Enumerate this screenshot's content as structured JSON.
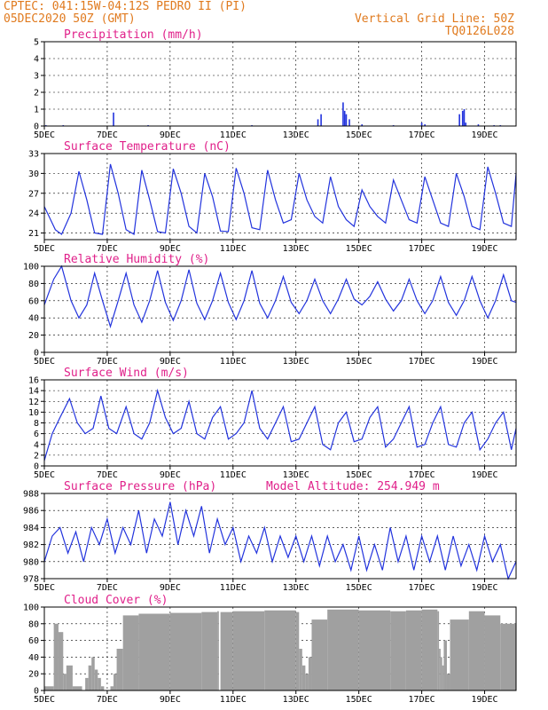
{
  "header": {
    "line1_left": "CPTEC:   041:15W-04:12S   PEDRO II (PI)",
    "line2_left": "05DEC2020 50Z (GMT)",
    "line2_right": "Vertical Grid Line: 50Z",
    "line3_right": "TQ0126L028"
  },
  "colors": {
    "line": "#2233dd",
    "bar": "#2233dd",
    "cloud": "#a0a0a0",
    "title": "#e0208a",
    "header": "#e07a1e"
  },
  "x_axis": {
    "tick_labels": [
      "5DEC",
      "7DEC",
      "9DEC",
      "11DEC",
      "13DEC",
      "15DEC",
      "17DEC",
      "19DEC"
    ],
    "tick_days": [
      0,
      2,
      4,
      6,
      8,
      10,
      12,
      14
    ],
    "day_range": [
      0,
      15
    ]
  },
  "chart_data": [
    {
      "type": "bar",
      "title": "Precipitation (mm/h)",
      "ylim": [
        0,
        5
      ],
      "yticks": [
        0,
        1,
        2,
        3,
        4,
        5
      ],
      "x": [
        0.05,
        0.6,
        2.2,
        3.3,
        6.6,
        8.7,
        8.8,
        9.5,
        9.55,
        9.6,
        9.7,
        10.1,
        11.1,
        12.0,
        12.1,
        13.2,
        13.3,
        13.35,
        13.4,
        13.8,
        14.3,
        14.5
      ],
      "values": [
        0.05,
        0.05,
        0.8,
        0.05,
        0.05,
        0.4,
        0.7,
        1.4,
        0.9,
        0.7,
        0.4,
        0.1,
        0.05,
        0.2,
        0.1,
        0.7,
        0.9,
        1.0,
        0.2,
        0.1,
        0.05,
        0.05
      ]
    },
    {
      "type": "line",
      "title": "Surface Temperature (nC)",
      "ylim": [
        20,
        33
      ],
      "yticks": [
        21,
        24,
        27,
        30,
        33
      ],
      "x": [
        0,
        0.35,
        0.55,
        0.85,
        1.1,
        1.35,
        1.6,
        1.85,
        2.1,
        2.35,
        2.6,
        2.85,
        3.1,
        3.35,
        3.6,
        3.85,
        4.1,
        4.35,
        4.6,
        4.85,
        5.1,
        5.35,
        5.6,
        5.85,
        6.1,
        6.35,
        6.6,
        6.85,
        7.1,
        7.35,
        7.6,
        7.85,
        8.1,
        8.35,
        8.6,
        8.85,
        9.1,
        9.35,
        9.6,
        9.85,
        10.1,
        10.35,
        10.6,
        10.85,
        11.1,
        11.35,
        11.6,
        11.85,
        12.1,
        12.35,
        12.6,
        12.85,
        13.1,
        13.35,
        13.6,
        13.85,
        14.1,
        14.35,
        14.6,
        14.85,
        15
      ],
      "values": [
        25,
        21.5,
        20.8,
        24,
        30.3,
        26,
        21,
        20.8,
        31.4,
        27,
        21.5,
        20.8,
        30.5,
        26,
        21.2,
        21,
        30.7,
        27,
        22,
        21,
        30,
        26.5,
        21.3,
        21.2,
        30.8,
        27,
        21.8,
        21.5,
        30.5,
        26,
        22.5,
        23,
        30,
        26,
        23.5,
        22.5,
        29.5,
        25,
        23,
        22,
        27.5,
        25,
        23.5,
        22.5,
        29,
        26,
        23,
        22.5,
        29.5,
        26,
        22.5,
        22,
        30,
        26.5,
        22,
        21.5,
        31,
        27,
        22.5,
        22,
        30
      ]
    },
    {
      "type": "line",
      "title": "Relative Humidity (%)",
      "ylim": [
        0,
        100
      ],
      "yticks": [
        0,
        20,
        40,
        60,
        80,
        100
      ],
      "x": [
        0,
        0.3,
        0.55,
        0.85,
        1.1,
        1.35,
        1.6,
        1.85,
        2.1,
        2.35,
        2.6,
        2.85,
        3.1,
        3.35,
        3.6,
        3.85,
        4.1,
        4.35,
        4.6,
        4.85,
        5.1,
        5.35,
        5.6,
        5.85,
        6.1,
        6.35,
        6.6,
        6.85,
        7.1,
        7.35,
        7.6,
        7.85,
        8.1,
        8.35,
        8.6,
        8.85,
        9.1,
        9.35,
        9.6,
        9.85,
        10.1,
        10.35,
        10.6,
        10.85,
        11.1,
        11.35,
        11.6,
        11.85,
        12.1,
        12.35,
        12.6,
        12.85,
        13.1,
        13.35,
        13.6,
        13.85,
        14.1,
        14.35,
        14.6,
        14.85,
        15
      ],
      "values": [
        55,
        85,
        100,
        60,
        40,
        55,
        92,
        60,
        30,
        60,
        92,
        55,
        35,
        60,
        95,
        58,
        37,
        60,
        96,
        57,
        38,
        60,
        92,
        58,
        38,
        60,
        95,
        57,
        40,
        60,
        88,
        58,
        45,
        60,
        85,
        60,
        45,
        62,
        85,
        62,
        55,
        65,
        82,
        62,
        48,
        60,
        85,
        60,
        45,
        60,
        88,
        58,
        43,
        60,
        88,
        60,
        40,
        60,
        90,
        60,
        58
      ]
    },
    {
      "type": "line",
      "title": "Surface Wind (m/s)",
      "ylim": [
        0,
        16
      ],
      "yticks": [
        0,
        2,
        4,
        6,
        8,
        10,
        12,
        14,
        16
      ],
      "x": [
        0,
        0.25,
        0.5,
        0.8,
        1.05,
        1.3,
        1.55,
        1.8,
        2.05,
        2.3,
        2.6,
        2.85,
        3.1,
        3.35,
        3.6,
        3.85,
        4.1,
        4.35,
        4.6,
        4.85,
        5.1,
        5.35,
        5.6,
        5.85,
        6.1,
        6.35,
        6.6,
        6.85,
        7.1,
        7.35,
        7.6,
        7.85,
        8.1,
        8.35,
        8.6,
        8.85,
        9.1,
        9.35,
        9.6,
        9.85,
        10.1,
        10.35,
        10.6,
        10.85,
        11.1,
        11.35,
        11.6,
        11.85,
        12.1,
        12.35,
        12.6,
        12.85,
        13.1,
        13.35,
        13.6,
        13.85,
        14.1,
        14.35,
        14.6,
        14.85,
        15
      ],
      "values": [
        1,
        6,
        9,
        12.5,
        8,
        6,
        7,
        13,
        7,
        6,
        11,
        6,
        5,
        8,
        14,
        9,
        6,
        7,
        12,
        6,
        5,
        9,
        11,
        5,
        6,
        8,
        14,
        7,
        5,
        8,
        11,
        4.5,
        5,
        8,
        11,
        4,
        3,
        8,
        10,
        4.5,
        5,
        9,
        11,
        3.5,
        5,
        8,
        11,
        3.5,
        4,
        8,
        11,
        4,
        3.5,
        8,
        10,
        3,
        5,
        8,
        10,
        3,
        7
      ]
    },
    {
      "type": "line",
      "title": "Surface Pressure (hPa)",
      "subtitle": "Model Altitude: 254.949 m",
      "ylim": [
        978,
        988
      ],
      "yticks": [
        978,
        980,
        982,
        984,
        986,
        988
      ],
      "x": [
        0,
        0.25,
        0.5,
        0.75,
        1.0,
        1.25,
        1.5,
        1.75,
        2.0,
        2.25,
        2.5,
        2.75,
        3.0,
        3.25,
        3.5,
        3.75,
        4.0,
        4.25,
        4.5,
        4.75,
        5.0,
        5.25,
        5.5,
        5.75,
        6.0,
        6.25,
        6.5,
        6.75,
        7.0,
        7.25,
        7.5,
        7.75,
        8.0,
        8.25,
        8.5,
        8.75,
        9.0,
        9.25,
        9.5,
        9.75,
        10.0,
        10.25,
        10.5,
        10.75,
        11.0,
        11.25,
        11.5,
        11.75,
        12.0,
        12.25,
        12.5,
        12.75,
        13.0,
        13.25,
        13.5,
        13.75,
        14.0,
        14.25,
        14.5,
        14.75,
        15
      ],
      "values": [
        980,
        983,
        984,
        981,
        983.5,
        980,
        984,
        982,
        985,
        981,
        984,
        982,
        986,
        981,
        985,
        983,
        987,
        982,
        986,
        983,
        986.5,
        981,
        985,
        982,
        984,
        980,
        983,
        981,
        984,
        980,
        983,
        980.5,
        983,
        980,
        983,
        979.5,
        983,
        980,
        982,
        979,
        983,
        979,
        982,
        979,
        984,
        980,
        983,
        979,
        983,
        980,
        983,
        979,
        983,
        979.5,
        982,
        979,
        983,
        980,
        982,
        978,
        980
      ]
    },
    {
      "type": "area",
      "title": "Cloud Cover (%)",
      "ylim": [
        0,
        100
      ],
      "yticks": [
        0,
        20,
        40,
        60,
        80,
        100
      ],
      "x": [
        0,
        0.3,
        0.45,
        0.6,
        0.7,
        0.9,
        1.2,
        1.3,
        1.4,
        1.5,
        1.6,
        1.7,
        1.8,
        1.9,
        2.0,
        2.1,
        2.2,
        2.3,
        2.5,
        3.0,
        4.0,
        5.0,
        5.5,
        5.55,
        5.6,
        6.0,
        7.0,
        8.0,
        8.1,
        8.2,
        8.3,
        8.4,
        8.5,
        9.0,
        10.0,
        11.0,
        11.5,
        12.0,
        12.5,
        12.55,
        12.6,
        12.65,
        12.7,
        12.8,
        12.9,
        13.5,
        14.0,
        14.5,
        15
      ],
      "values": [
        5,
        80,
        70,
        20,
        30,
        5,
        0,
        15,
        30,
        40,
        25,
        15,
        5,
        0,
        0,
        5,
        20,
        50,
        90,
        92,
        93,
        94,
        95,
        0,
        94,
        95,
        96,
        94,
        50,
        30,
        20,
        40,
        85,
        97,
        96,
        95,
        96,
        97,
        95,
        50,
        40,
        30,
        60,
        20,
        85,
        95,
        90,
        80,
        95
      ]
    }
  ]
}
